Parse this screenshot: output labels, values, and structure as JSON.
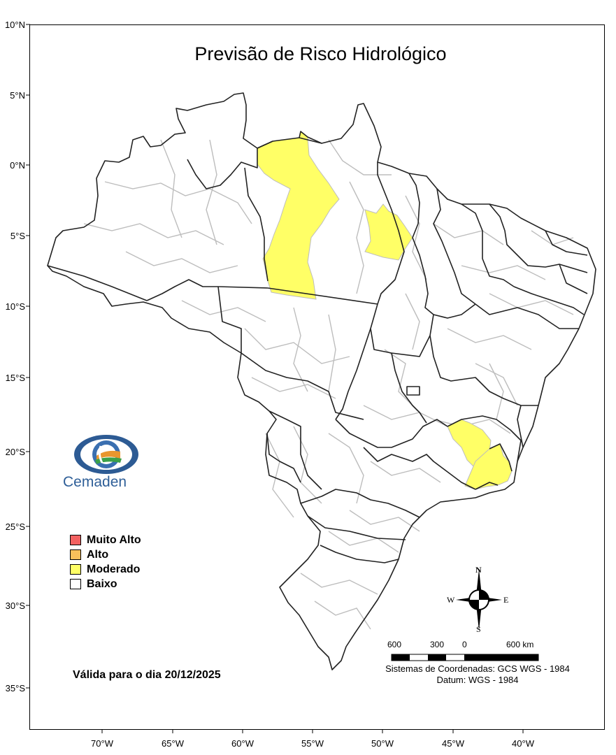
{
  "title": "Previsão de Risco Hidrológico",
  "latitude_labels": [
    "10°N",
    "5°N",
    "0°N",
    "5°S",
    "10°S",
    "15°S",
    "20°S",
    "25°S",
    "30°S",
    "35°S"
  ],
  "longitude_labels": [
    "70°W",
    "65°W",
    "60°W",
    "55°W",
    "50°W",
    "45°W",
    "40°W"
  ],
  "legend": [
    {
      "label": "Muito Alto",
      "color": "#f26161"
    },
    {
      "label": "Alto",
      "color": "#f9c05b"
    },
    {
      "label": "Moderado",
      "color": "#ffff66"
    },
    {
      "label": "Baixo",
      "color": "#ffffff"
    }
  ],
  "validity": "Válida para o dia 20/12/2025",
  "logo": {
    "text": "Cemaden",
    "icon": "cemaden-eye-logo"
  },
  "compass": {
    "n": "N",
    "s": "S",
    "e": "E",
    "w": "W"
  },
  "scale": {
    "labels": [
      "600",
      "300",
      "0",
      "600 km"
    ]
  },
  "crs": {
    "line1": "Sistemas de Coordenadas: GCS WGS - 1984",
    "line2": "Datum: WGS - 1984"
  },
  "colors": {
    "state_border": "#222222",
    "municipal_border": "#bdbdbd",
    "moderate_fill": "#ffff66"
  },
  "risk_areas": [
    {
      "region": "western Pará / Amapá border",
      "level": "Moderado"
    },
    {
      "region": "central Pará",
      "level": "Moderado"
    },
    {
      "region": "Minas Gerais south",
      "level": "Moderado"
    },
    {
      "region": "Rio de Janeiro / Espírito Santo",
      "level": "Moderado"
    }
  ]
}
